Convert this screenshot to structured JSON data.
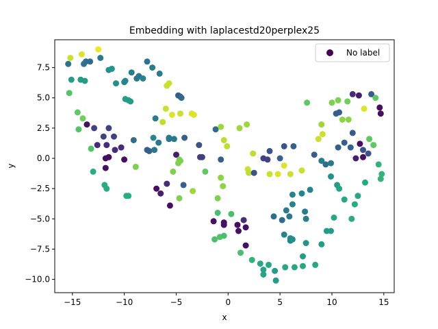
{
  "chart_data": {
    "type": "scatter",
    "title": "Embedding with laplacestd20perplex25",
    "xlabel": "x",
    "ylabel": "y",
    "xlim": [
      -16.7,
      16.0
    ],
    "ylim": [
      -11.1,
      9.8
    ],
    "xticks": [
      -15,
      -10,
      -5,
      0,
      5,
      10,
      15
    ],
    "yticks": [
      -10.0,
      -7.5,
      -5.0,
      -2.5,
      0.0,
      2.5,
      5.0,
      7.5
    ],
    "xtick_labels": [
      "−15",
      "−10",
      "−5",
      "0",
      "5",
      "10",
      "15"
    ],
    "ytick_labels": [
      "−10.0",
      "−7.5",
      "−5.0",
      "−2.5",
      "0.0",
      "2.5",
      "5.0",
      "7.5"
    ],
    "grid": false,
    "legend": {
      "position": "top-right",
      "entries": [
        {
          "label": "No label",
          "color": "#440154"
        }
      ]
    },
    "colormap": "viridis",
    "points": [
      {
        "x": -15.2,
        "y": 8.3,
        "c": 0.92
      },
      {
        "x": -14.1,
        "y": 8.6,
        "c": 0.95
      },
      {
        "x": -12.5,
        "y": 9.0,
        "c": 0.98
      },
      {
        "x": -15.4,
        "y": 7.8,
        "c": 0.38
      },
      {
        "x": -13.9,
        "y": 7.8,
        "c": 0.38
      },
      {
        "x": -13.7,
        "y": 8.0,
        "c": 0.36
      },
      {
        "x": -13.3,
        "y": 8.0,
        "c": 0.34
      },
      {
        "x": -12.3,
        "y": 8.3,
        "c": 0.4
      },
      {
        "x": -11.5,
        "y": 7.3,
        "c": 0.5
      },
      {
        "x": -11.2,
        "y": 7.4,
        "c": 0.52
      },
      {
        "x": -15.1,
        "y": 6.5,
        "c": 0.55
      },
      {
        "x": -14.2,
        "y": 6.5,
        "c": 0.55
      },
      {
        "x": -13.8,
        "y": 6.4,
        "c": 0.55
      },
      {
        "x": -10.8,
        "y": 6.2,
        "c": 0.5
      },
      {
        "x": -10.0,
        "y": 6.3,
        "c": 0.45
      },
      {
        "x": -9.9,
        "y": 6.4,
        "c": 0.45
      },
      {
        "x": -9.3,
        "y": 7.1,
        "c": 0.42
      },
      {
        "x": -8.8,
        "y": 6.6,
        "c": 0.4
      },
      {
        "x": -8.6,
        "y": 6.8,
        "c": 0.4
      },
      {
        "x": -8.2,
        "y": 6.6,
        "c": 0.44
      },
      {
        "x": -7.8,
        "y": 8.0,
        "c": 0.38
      },
      {
        "x": -7.3,
        "y": 7.5,
        "c": 0.42
      },
      {
        "x": -6.6,
        "y": 7.0,
        "c": 0.42
      },
      {
        "x": -5.9,
        "y": 6.0,
        "c": 0.92
      },
      {
        "x": -5.7,
        "y": 6.2,
        "c": 0.92
      },
      {
        "x": -4.8,
        "y": 5.2,
        "c": 0.3
      },
      {
        "x": -4.6,
        "y": 5.1,
        "c": 0.3
      },
      {
        "x": -4.5,
        "y": 5.0,
        "c": 0.35
      },
      {
        "x": -15.3,
        "y": 5.4,
        "c": 0.72
      },
      {
        "x": -9.9,
        "y": 4.9,
        "c": 0.55
      },
      {
        "x": -9.6,
        "y": 4.8,
        "c": 0.55
      },
      {
        "x": -9.4,
        "y": 4.7,
        "c": 0.55
      },
      {
        "x": -14.5,
        "y": 3.8,
        "c": 0.75
      },
      {
        "x": -14.4,
        "y": 2.4,
        "c": 0.72
      },
      {
        "x": -14.0,
        "y": 3.3,
        "c": 0.78
      },
      {
        "x": -13.6,
        "y": 2.8,
        "c": 0.05
      },
      {
        "x": -12.9,
        "y": 2.5,
        "c": 0.2
      },
      {
        "x": -12.0,
        "y": 1.8,
        "c": 0.2
      },
      {
        "x": -11.5,
        "y": 2.5,
        "c": 0.2
      },
      {
        "x": -11.0,
        "y": 1.8,
        "c": 0.2
      },
      {
        "x": -12.6,
        "y": 1.1,
        "c": 0.15
      },
      {
        "x": -11.7,
        "y": 1.1,
        "c": 0.15
      },
      {
        "x": -10.9,
        "y": 0.7,
        "c": 0.15
      },
      {
        "x": -10.3,
        "y": 0.9,
        "c": 0.15
      },
      {
        "x": -11.8,
        "y": 0.0,
        "c": 0.05
      },
      {
        "x": -11.5,
        "y": 0.1,
        "c": 0.05
      },
      {
        "x": -11.8,
        "y": -0.8,
        "c": 0.05
      },
      {
        "x": -13.2,
        "y": 0.8,
        "c": 0.72
      },
      {
        "x": -13.0,
        "y": -1.1,
        "c": 0.62
      },
      {
        "x": -11.9,
        "y": -2.2,
        "c": 0.62
      },
      {
        "x": -11.7,
        "y": -2.5,
        "c": 0.62
      },
      {
        "x": -10.0,
        "y": -0.1,
        "c": 0.05
      },
      {
        "x": -9.8,
        "y": -3.1,
        "c": 0.62
      },
      {
        "x": -9.6,
        "y": -3.1,
        "c": 0.62
      },
      {
        "x": -9.1,
        "y": 1.5,
        "c": 0.35
      },
      {
        "x": -8.9,
        "y": -0.7,
        "c": 0.8
      },
      {
        "x": -7.8,
        "y": 0.7,
        "c": 0.3
      },
      {
        "x": -7.6,
        "y": 0.6,
        "c": 0.3
      },
      {
        "x": -7.2,
        "y": 1.7,
        "c": 0.45
      },
      {
        "x": -7.1,
        "y": 0.7,
        "c": 0.4
      },
      {
        "x": -6.7,
        "y": 1.3,
        "c": 0.4
      },
      {
        "x": -7.0,
        "y": 3.3,
        "c": 0.42
      },
      {
        "x": -6.3,
        "y": 3.0,
        "c": 0.9
      },
      {
        "x": -6.0,
        "y": 4.1,
        "c": 0.92
      },
      {
        "x": -5.4,
        "y": 3.6,
        "c": 0.95
      },
      {
        "x": -4.6,
        "y": 3.7,
        "c": 0.92
      },
      {
        "x": -3.5,
        "y": 3.7,
        "c": 0.95
      },
      {
        "x": -3.3,
        "y": 3.6,
        "c": 0.95
      },
      {
        "x": -5.7,
        "y": 1.7,
        "c": 0.4
      },
      {
        "x": -5.7,
        "y": 1.6,
        "c": 0.4
      },
      {
        "x": -5.2,
        "y": 1.6,
        "c": 0.4
      },
      {
        "x": -4.2,
        "y": 1.7,
        "c": 0.3
      },
      {
        "x": -5.0,
        "y": 0.3,
        "c": 0.1
      },
      {
        "x": -4.7,
        "y": -0.1,
        "c": 0.8
      },
      {
        "x": -4.6,
        "y": -0.2,
        "c": 0.8
      },
      {
        "x": -4.8,
        "y": -0.4,
        "c": 0.8
      },
      {
        "x": -6.9,
        "y": -2.5,
        "c": 0.05
      },
      {
        "x": -6.5,
        "y": -2.9,
        "c": 0.1
      },
      {
        "x": -5.9,
        "y": -2.1,
        "c": 0.15
      },
      {
        "x": -5.6,
        "y": -3.9,
        "c": 0.05
      },
      {
        "x": -5.3,
        "y": -1.1,
        "c": 0.8
      },
      {
        "x": -4.7,
        "y": -3.3,
        "c": 0.8
      },
      {
        "x": -4.3,
        "y": -2.2,
        "c": 0.3
      },
      {
        "x": -3.4,
        "y": -2.7,
        "c": 0.85
      },
      {
        "x": -2.8,
        "y": 1.1,
        "c": 0.25
      },
      {
        "x": -2.7,
        "y": 0.1,
        "c": 0.2
      },
      {
        "x": -2.5,
        "y": 0.1,
        "c": 0.2
      },
      {
        "x": -2.2,
        "y": -1.1,
        "c": 0.75
      },
      {
        "x": -1.2,
        "y": 2.4,
        "c": 0.35
      },
      {
        "x": -0.7,
        "y": 2.6,
        "c": 0.85
      },
      {
        "x": -0.7,
        "y": -0.1,
        "c": 0.3
      },
      {
        "x": -0.4,
        "y": 1.5,
        "c": 0.9
      },
      {
        "x": -0.1,
        "y": 1.0,
        "c": 0.9
      },
      {
        "x": 1.1,
        "y": 2.5,
        "c": 0.85
      },
      {
        "x": 1.8,
        "y": 2.8,
        "c": 0.85
      },
      {
        "x": 1.9,
        "y": -0.9,
        "c": 0.92
      },
      {
        "x": 2.0,
        "y": -1.2,
        "c": 0.9
      },
      {
        "x": 2.5,
        "y": -1.2,
        "c": 0.25
      },
      {
        "x": 2.4,
        "y": 0.4,
        "c": 0.9
      },
      {
        "x": 3.4,
        "y": 0.0,
        "c": 0.2
      },
      {
        "x": 3.8,
        "y": -0.1,
        "c": 0.2
      },
      {
        "x": 4.0,
        "y": 0.6,
        "c": 0.25
      },
      {
        "x": 4.0,
        "y": -1.3,
        "c": 0.92
      },
      {
        "x": 4.8,
        "y": -1.3,
        "c": 0.95
      },
      {
        "x": 5.0,
        "y": 0.0,
        "c": 0.3
      },
      {
        "x": 5.4,
        "y": 1.0,
        "c": 0.25
      },
      {
        "x": 5.4,
        "y": -0.6,
        "c": 0.95
      },
      {
        "x": 6.0,
        "y": -1.3,
        "c": 0.92
      },
      {
        "x": 6.3,
        "y": 1.0,
        "c": 0.3
      },
      {
        "x": 7.1,
        "y": -1.0,
        "c": 0.92
      },
      {
        "x": 8.3,
        "y": 0.3,
        "c": 0.3
      },
      {
        "x": 9.0,
        "y": -0.2,
        "c": 0.42
      },
      {
        "x": 9.4,
        "y": -0.5,
        "c": 0.35
      },
      {
        "x": 9.9,
        "y": -0.4,
        "c": 0.4
      },
      {
        "x": 7.6,
        "y": 4.6,
        "c": 0.75
      },
      {
        "x": 8.7,
        "y": 1.6,
        "c": 0.92
      },
      {
        "x": 9.0,
        "y": 2.8,
        "c": 0.85
      },
      {
        "x": 9.1,
        "y": 2.0,
        "c": 0.92
      },
      {
        "x": 10.0,
        "y": 4.6,
        "c": 0.8
      },
      {
        "x": 10.6,
        "y": 4.8,
        "c": 0.8
      },
      {
        "x": 10.4,
        "y": 3.7,
        "c": 0.3
      },
      {
        "x": 10.7,
        "y": 3.8,
        "c": 0.3
      },
      {
        "x": 11.0,
        "y": 3.2,
        "c": 0.82
      },
      {
        "x": 11.6,
        "y": 3.2,
        "c": 0.82
      },
      {
        "x": 11.5,
        "y": 4.7,
        "c": 0.78
      },
      {
        "x": 12.0,
        "y": 5.3,
        "c": 0.15
      },
      {
        "x": 12.6,
        "y": 5.2,
        "c": 0.1
      },
      {
        "x": 13.1,
        "y": 4.1,
        "c": 0.95
      },
      {
        "x": 13.8,
        "y": 5.3,
        "c": 0.28
      },
      {
        "x": 14.2,
        "y": 5.0,
        "c": 0.75
      },
      {
        "x": 14.6,
        "y": 4.2,
        "c": 0.05
      },
      {
        "x": 14.7,
        "y": 3.7,
        "c": 0.05
      },
      {
        "x": 10.6,
        "y": 0.9,
        "c": 0.3
      },
      {
        "x": 11.2,
        "y": 1.3,
        "c": 0.3
      },
      {
        "x": 11.8,
        "y": 0.9,
        "c": 0.3
      },
      {
        "x": 12.0,
        "y": 2.1,
        "c": 0.28
      },
      {
        "x": 12.3,
        "y": 0.0,
        "c": 0.1
      },
      {
        "x": 12.7,
        "y": 1.2,
        "c": 0.05
      },
      {
        "x": 13.0,
        "y": 0.1,
        "c": 0.05
      },
      {
        "x": 13.0,
        "y": 0.7,
        "c": 0.25
      },
      {
        "x": 13.5,
        "y": 0.4,
        "c": 0.25
      },
      {
        "x": 13.6,
        "y": 1.6,
        "c": 0.75
      },
      {
        "x": 14.0,
        "y": 1.1,
        "c": 0.75
      },
      {
        "x": 14.5,
        "y": -0.5,
        "c": 0.65
      },
      {
        "x": 14.8,
        "y": -1.3,
        "c": 0.65
      },
      {
        "x": 14.7,
        "y": -1.7,
        "c": 0.65
      },
      {
        "x": 9.9,
        "y": -1.5,
        "c": 0.5
      },
      {
        "x": 10.5,
        "y": -2.2,
        "c": 0.55
      },
      {
        "x": 10.7,
        "y": -2.5,
        "c": 0.58
      },
      {
        "x": 11.2,
        "y": -3.4,
        "c": 0.6
      },
      {
        "x": 12.2,
        "y": -3.8,
        "c": 0.62
      },
      {
        "x": 12.5,
        "y": -3.1,
        "c": 0.6
      },
      {
        "x": 13.2,
        "y": -2.0,
        "c": 0.6
      },
      {
        "x": 11.9,
        "y": -5.0,
        "c": 0.62
      },
      {
        "x": 10.2,
        "y": -4.9,
        "c": 0.6
      },
      {
        "x": 9.5,
        "y": -6.0,
        "c": 0.55
      },
      {
        "x": 9.9,
        "y": -6.0,
        "c": 0.55
      },
      {
        "x": 9.0,
        "y": -7.1,
        "c": 0.55
      },
      {
        "x": 8.4,
        "y": -8.8,
        "c": 0.6
      },
      {
        "x": 7.9,
        "y": -2.6,
        "c": 0.45
      },
      {
        "x": 7.1,
        "y": -2.9,
        "c": 0.45
      },
      {
        "x": 6.2,
        "y": -3.0,
        "c": 0.45
      },
      {
        "x": 6.2,
        "y": -3.8,
        "c": 0.45
      },
      {
        "x": 5.6,
        "y": -4.3,
        "c": 0.4
      },
      {
        "x": 4.4,
        "y": -4.8,
        "c": 0.35
      },
      {
        "x": 5.2,
        "y": -5.1,
        "c": 0.35
      },
      {
        "x": 5.9,
        "y": -4.8,
        "c": 0.4
      },
      {
        "x": 7.4,
        "y": -4.4,
        "c": 0.42
      },
      {
        "x": 7.5,
        "y": -5.0,
        "c": 0.42
      },
      {
        "x": 5.4,
        "y": -6.3,
        "c": 0.45
      },
      {
        "x": 6.0,
        "y": -6.6,
        "c": 0.48
      },
      {
        "x": 6.0,
        "y": -6.8,
        "c": 0.45
      },
      {
        "x": 6.2,
        "y": -6.7,
        "c": 0.5
      },
      {
        "x": 7.5,
        "y": -7.0,
        "c": 0.52
      },
      {
        "x": 7.2,
        "y": -8.1,
        "c": 0.55
      },
      {
        "x": 7.2,
        "y": -8.9,
        "c": 0.6
      },
      {
        "x": 6.4,
        "y": -9.0,
        "c": 0.6
      },
      {
        "x": 5.5,
        "y": -9.0,
        "c": 0.6
      },
      {
        "x": 4.6,
        "y": -10.1,
        "c": 0.55
      },
      {
        "x": 4.5,
        "y": -9.3,
        "c": 0.55
      },
      {
        "x": 3.9,
        "y": -8.8,
        "c": 0.6
      },
      {
        "x": 3.4,
        "y": -9.2,
        "c": 0.58
      },
      {
        "x": 3.4,
        "y": -9.6,
        "c": 0.58
      },
      {
        "x": 3.1,
        "y": -8.7,
        "c": 0.6
      },
      {
        "x": 2.3,
        "y": -8.4,
        "c": 0.65
      },
      {
        "x": 1.2,
        "y": -7.8,
        "c": 0.7
      },
      {
        "x": 1.7,
        "y": -7.2,
        "c": 0.05
      },
      {
        "x": 1.0,
        "y": -6.0,
        "c": 0.05
      },
      {
        "x": 0.9,
        "y": -5.5,
        "c": 0.05
      },
      {
        "x": 1.5,
        "y": -5.1,
        "c": 0.15
      },
      {
        "x": 1.7,
        "y": -5.7,
        "c": 0.05
      },
      {
        "x": 0.3,
        "y": -4.6,
        "c": 0.7
      },
      {
        "x": -0.4,
        "y": -5.3,
        "c": 0.05
      },
      {
        "x": -0.4,
        "y": -5.5,
        "c": 0.05
      },
      {
        "x": -1.4,
        "y": -5.2,
        "c": 0.05
      },
      {
        "x": -1.0,
        "y": -4.5,
        "c": 0.7
      },
      {
        "x": -1.3,
        "y": -6.7,
        "c": 0.7
      },
      {
        "x": -0.8,
        "y": -6.5,
        "c": 0.72
      },
      {
        "x": -0.4,
        "y": -6.4,
        "c": 0.7
      },
      {
        "x": -0.5,
        "y": -2.3,
        "c": 0.82
      },
      {
        "x": -0.7,
        "y": -1.6,
        "c": 0.82
      },
      {
        "x": -1.0,
        "y": -3.3,
        "c": 0.8
      }
    ]
  }
}
